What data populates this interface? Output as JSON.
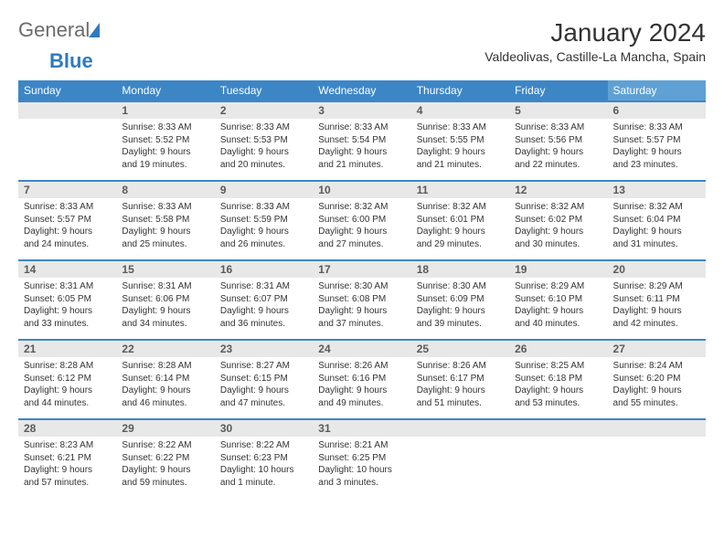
{
  "logo": {
    "part1": "General",
    "part2": "Blue"
  },
  "title": "January 2024",
  "location": "Valdeolivas, Castille-La Mancha, Spain",
  "colors": {
    "header_bg": "#3d86c6",
    "header_bg_alt": "#5fa1d4",
    "daynum_bg": "#e8e8e8",
    "border": "#3d86c6",
    "text": "#333333",
    "logo_gray": "#6b6b6b",
    "logo_blue": "#2f7abf"
  },
  "day_headers": [
    "Sunday",
    "Monday",
    "Tuesday",
    "Wednesday",
    "Thursday",
    "Friday",
    "Saturday"
  ],
  "weeks": [
    [
      {
        "num": "",
        "lines": []
      },
      {
        "num": "1",
        "lines": [
          "Sunrise: 8:33 AM",
          "Sunset: 5:52 PM",
          "Daylight: 9 hours",
          "and 19 minutes."
        ]
      },
      {
        "num": "2",
        "lines": [
          "Sunrise: 8:33 AM",
          "Sunset: 5:53 PM",
          "Daylight: 9 hours",
          "and 20 minutes."
        ]
      },
      {
        "num": "3",
        "lines": [
          "Sunrise: 8:33 AM",
          "Sunset: 5:54 PM",
          "Daylight: 9 hours",
          "and 21 minutes."
        ]
      },
      {
        "num": "4",
        "lines": [
          "Sunrise: 8:33 AM",
          "Sunset: 5:55 PM",
          "Daylight: 9 hours",
          "and 21 minutes."
        ]
      },
      {
        "num": "5",
        "lines": [
          "Sunrise: 8:33 AM",
          "Sunset: 5:56 PM",
          "Daylight: 9 hours",
          "and 22 minutes."
        ]
      },
      {
        "num": "6",
        "lines": [
          "Sunrise: 8:33 AM",
          "Sunset: 5:57 PM",
          "Daylight: 9 hours",
          "and 23 minutes."
        ]
      }
    ],
    [
      {
        "num": "7",
        "lines": [
          "Sunrise: 8:33 AM",
          "Sunset: 5:57 PM",
          "Daylight: 9 hours",
          "and 24 minutes."
        ]
      },
      {
        "num": "8",
        "lines": [
          "Sunrise: 8:33 AM",
          "Sunset: 5:58 PM",
          "Daylight: 9 hours",
          "and 25 minutes."
        ]
      },
      {
        "num": "9",
        "lines": [
          "Sunrise: 8:33 AM",
          "Sunset: 5:59 PM",
          "Daylight: 9 hours",
          "and 26 minutes."
        ]
      },
      {
        "num": "10",
        "lines": [
          "Sunrise: 8:32 AM",
          "Sunset: 6:00 PM",
          "Daylight: 9 hours",
          "and 27 minutes."
        ]
      },
      {
        "num": "11",
        "lines": [
          "Sunrise: 8:32 AM",
          "Sunset: 6:01 PM",
          "Daylight: 9 hours",
          "and 29 minutes."
        ]
      },
      {
        "num": "12",
        "lines": [
          "Sunrise: 8:32 AM",
          "Sunset: 6:02 PM",
          "Daylight: 9 hours",
          "and 30 minutes."
        ]
      },
      {
        "num": "13",
        "lines": [
          "Sunrise: 8:32 AM",
          "Sunset: 6:04 PM",
          "Daylight: 9 hours",
          "and 31 minutes."
        ]
      }
    ],
    [
      {
        "num": "14",
        "lines": [
          "Sunrise: 8:31 AM",
          "Sunset: 6:05 PM",
          "Daylight: 9 hours",
          "and 33 minutes."
        ]
      },
      {
        "num": "15",
        "lines": [
          "Sunrise: 8:31 AM",
          "Sunset: 6:06 PM",
          "Daylight: 9 hours",
          "and 34 minutes."
        ]
      },
      {
        "num": "16",
        "lines": [
          "Sunrise: 8:31 AM",
          "Sunset: 6:07 PM",
          "Daylight: 9 hours",
          "and 36 minutes."
        ]
      },
      {
        "num": "17",
        "lines": [
          "Sunrise: 8:30 AM",
          "Sunset: 6:08 PM",
          "Daylight: 9 hours",
          "and 37 minutes."
        ]
      },
      {
        "num": "18",
        "lines": [
          "Sunrise: 8:30 AM",
          "Sunset: 6:09 PM",
          "Daylight: 9 hours",
          "and 39 minutes."
        ]
      },
      {
        "num": "19",
        "lines": [
          "Sunrise: 8:29 AM",
          "Sunset: 6:10 PM",
          "Daylight: 9 hours",
          "and 40 minutes."
        ]
      },
      {
        "num": "20",
        "lines": [
          "Sunrise: 8:29 AM",
          "Sunset: 6:11 PM",
          "Daylight: 9 hours",
          "and 42 minutes."
        ]
      }
    ],
    [
      {
        "num": "21",
        "lines": [
          "Sunrise: 8:28 AM",
          "Sunset: 6:12 PM",
          "Daylight: 9 hours",
          "and 44 minutes."
        ]
      },
      {
        "num": "22",
        "lines": [
          "Sunrise: 8:28 AM",
          "Sunset: 6:14 PM",
          "Daylight: 9 hours",
          "and 46 minutes."
        ]
      },
      {
        "num": "23",
        "lines": [
          "Sunrise: 8:27 AM",
          "Sunset: 6:15 PM",
          "Daylight: 9 hours",
          "and 47 minutes."
        ]
      },
      {
        "num": "24",
        "lines": [
          "Sunrise: 8:26 AM",
          "Sunset: 6:16 PM",
          "Daylight: 9 hours",
          "and 49 minutes."
        ]
      },
      {
        "num": "25",
        "lines": [
          "Sunrise: 8:26 AM",
          "Sunset: 6:17 PM",
          "Daylight: 9 hours",
          "and 51 minutes."
        ]
      },
      {
        "num": "26",
        "lines": [
          "Sunrise: 8:25 AM",
          "Sunset: 6:18 PM",
          "Daylight: 9 hours",
          "and 53 minutes."
        ]
      },
      {
        "num": "27",
        "lines": [
          "Sunrise: 8:24 AM",
          "Sunset: 6:20 PM",
          "Daylight: 9 hours",
          "and 55 minutes."
        ]
      }
    ],
    [
      {
        "num": "28",
        "lines": [
          "Sunrise: 8:23 AM",
          "Sunset: 6:21 PM",
          "Daylight: 9 hours",
          "and 57 minutes."
        ]
      },
      {
        "num": "29",
        "lines": [
          "Sunrise: 8:22 AM",
          "Sunset: 6:22 PM",
          "Daylight: 9 hours",
          "and 59 minutes."
        ]
      },
      {
        "num": "30",
        "lines": [
          "Sunrise: 8:22 AM",
          "Sunset: 6:23 PM",
          "Daylight: 10 hours",
          "and 1 minute."
        ]
      },
      {
        "num": "31",
        "lines": [
          "Sunrise: 8:21 AM",
          "Sunset: 6:25 PM",
          "Daylight: 10 hours",
          "and 3 minutes."
        ]
      },
      {
        "num": "",
        "lines": []
      },
      {
        "num": "",
        "lines": []
      },
      {
        "num": "",
        "lines": []
      }
    ]
  ]
}
